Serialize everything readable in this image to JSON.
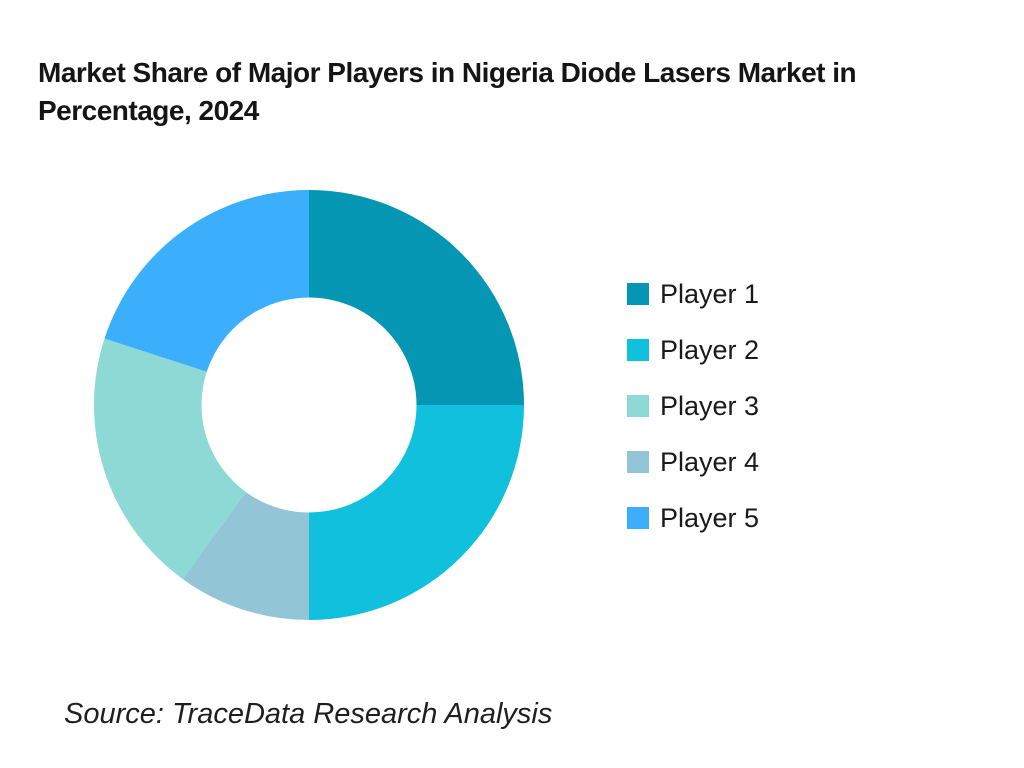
{
  "header": {
    "title": "Market Share of Major Players in Nigeria Diode Lasers Market in Percentage, 2024",
    "lines": [
      "Market Share of Major Players in Nigeria Diode Lasers Market in",
      "Percentage, 2024"
    ]
  },
  "chart_data": {
    "type": "pie",
    "subtype": "donut",
    "title": "Market Share of Major Players in Nigeria Diode Lasers Market in Percentage, 2024",
    "unit": "%",
    "categories": [
      "Player 1",
      "Player 2",
      "Player 3",
      "Player 4",
      "Player 5"
    ],
    "values": [
      25,
      25,
      20,
      10,
      20
    ],
    "colors": [
      "#0496B2",
      "#10C0DC",
      "#8CD9D6",
      "#92C6D6",
      "#3BAFFB"
    ],
    "legend_position": "right",
    "inner_radius_ratio": 0.5,
    "segments_draw_order_clockwise_from_top": [
      {
        "label": "Player 1",
        "value": 25,
        "color": "#0496B2",
        "start_angle": 0,
        "end_angle": 90
      },
      {
        "label": "Player 2",
        "value": 25,
        "color": "#10C0DC",
        "start_angle": 90,
        "end_angle": 180
      },
      {
        "label": "Player 4",
        "value": 10,
        "color": "#92C6D6",
        "start_angle": 180,
        "end_angle": 216
      },
      {
        "label": "Player 3",
        "value": 20,
        "color": "#8CD9D6",
        "start_angle": 216,
        "end_angle": 288
      },
      {
        "label": "Player 5",
        "value": 20,
        "color": "#3BAFFB",
        "start_angle": 288,
        "end_angle": 360
      }
    ]
  },
  "legend": {
    "items": [
      {
        "label": "Player 1",
        "color": "#0496B2"
      },
      {
        "label": "Player 2",
        "color": "#10C0DC"
      },
      {
        "label": "Player 3",
        "color": "#8CD9D6"
      },
      {
        "label": "Player 4",
        "color": "#92C6D6"
      },
      {
        "label": "Player 5",
        "color": "#3BAFFB"
      }
    ]
  },
  "footer": {
    "source": "Source: TraceData Research Analysis"
  }
}
